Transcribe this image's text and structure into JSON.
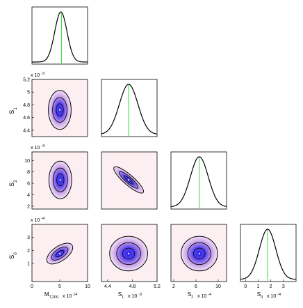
{
  "colors": {
    "background": "#ffffff",
    "contour_line": "#000000",
    "truth_line": "#33dd33",
    "density_low": "#fbeff2",
    "density_mid": "#c9a2e8",
    "density_high": "#2a22ee"
  },
  "chart_data": {
    "type": "corner-plot",
    "parameters": [
      {
        "id": "M",
        "axis_label": "M",
        "axis_label_sub": "T,200",
        "range": [
          0,
          10
        ],
        "ticks": [
          "0",
          "5",
          "10"
        ],
        "scale_note": "x 10",
        "scale_exp": "14"
      },
      {
        "id": "S1",
        "axis_label": "S",
        "axis_label_sub": "1",
        "range": [
          4.3,
          5.2
        ],
        "ticks": [
          "4.4",
          "4.6",
          "4.8",
          "5",
          "5.2"
        ],
        "x_ticks": [
          "4.4",
          "4.8",
          "5.2"
        ],
        "scale_note": "x 10",
        "scale_exp": "-3"
      },
      {
        "id": "S2",
        "axis_label": "S",
        "axis_label_sub": "2",
        "range": [
          1.5,
          11.5
        ],
        "ticks": [
          "2",
          "4",
          "6",
          "8",
          "10"
        ],
        "x_ticks": [
          "2",
          "6",
          "10"
        ],
        "scale_note": "x 10",
        "scale_exp": "-4"
      },
      {
        "id": "S0",
        "axis_label": "S",
        "axis_label_sub": "0",
        "range": [
          -0.4,
          4.0
        ],
        "ticks": [
          "1",
          "2",
          "3"
        ],
        "x_ticks": [
          "0",
          "1",
          "2",
          "3"
        ],
        "scale_note": "x 10",
        "scale_exp": "-4"
      }
    ],
    "marginals": [
      {
        "param": "M",
        "peak": 5.2,
        "width": 1.1,
        "truth": 5.3
      },
      {
        "param": "S1",
        "peak": 4.74,
        "width": 0.15,
        "truth": 4.74
      },
      {
        "param": "S2",
        "peak": 6.6,
        "width": 1.6,
        "truth": 6.6
      },
      {
        "param": "S0",
        "peak": 1.75,
        "width": 0.65,
        "truth": 1.75
      }
    ],
    "joint": [
      {
        "x": "M",
        "y": "S1",
        "cx": 5.0,
        "cy": 4.72,
        "sx": 1.0,
        "sy": 0.15,
        "rho": 0.0
      },
      {
        "x": "M",
        "y": "S2",
        "cx": 5.1,
        "cy": 6.6,
        "sx": 1.0,
        "sy": 1.6,
        "rho": 0.0
      },
      {
        "x": "S1",
        "y": "S2",
        "cx": 4.74,
        "cy": 6.6,
        "sx": 0.15,
        "sy": 1.6,
        "rho": -0.88
      },
      {
        "x": "M",
        "y": "S0",
        "cx": 5.0,
        "cy": 1.75,
        "sx": 1.0,
        "sy": 0.65,
        "rho": 0.45
      },
      {
        "x": "S1",
        "y": "S0",
        "cx": 4.74,
        "cy": 1.75,
        "sx": 0.15,
        "sy": 0.65,
        "rho": 0.0
      },
      {
        "x": "S2",
        "y": "S0",
        "cx": 6.6,
        "cy": 1.75,
        "sx": 1.6,
        "sy": 0.65,
        "rho": 0.0
      }
    ]
  }
}
